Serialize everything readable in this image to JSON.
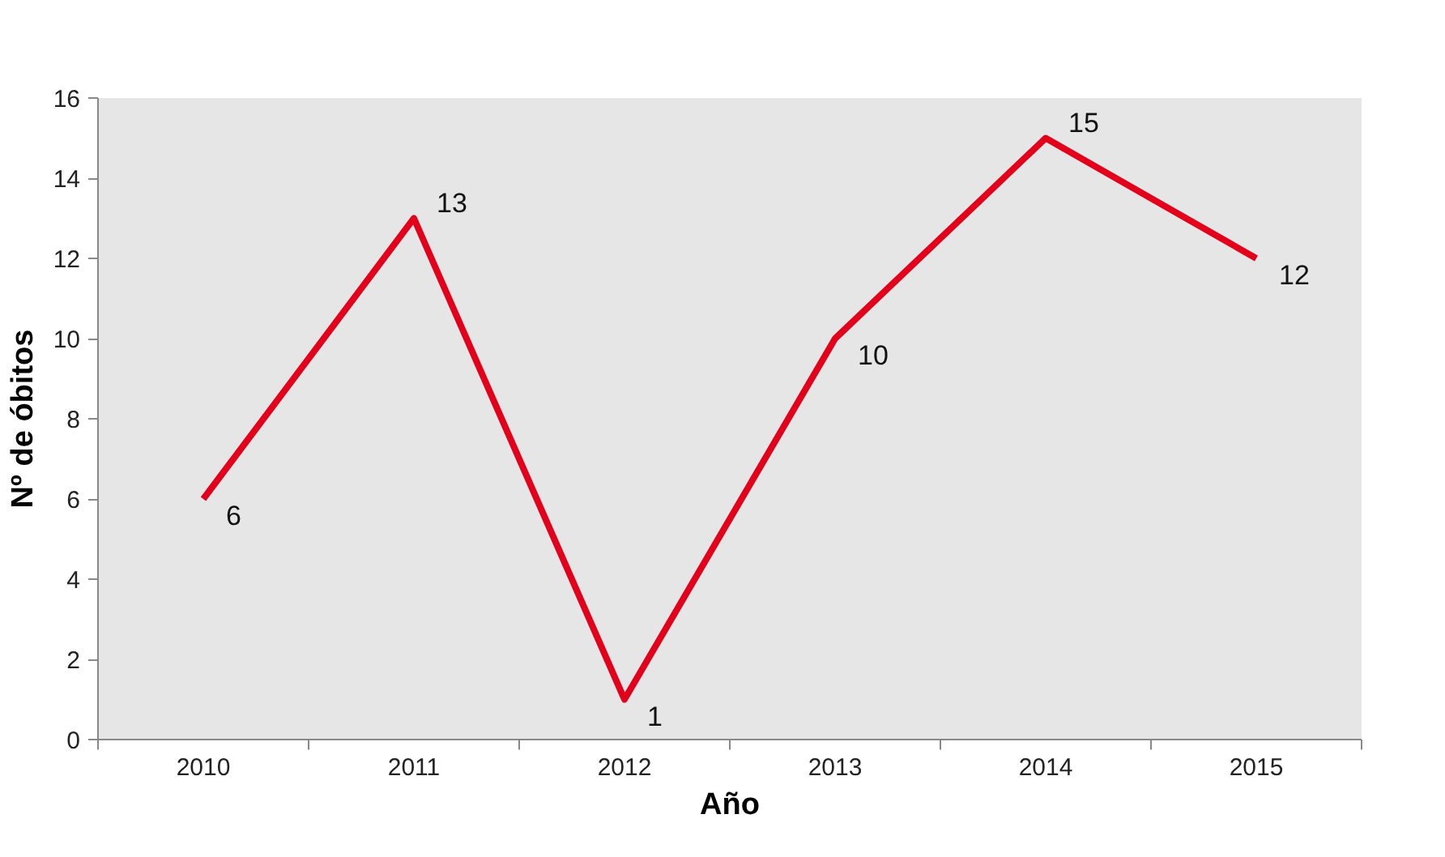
{
  "chart_data": {
    "type": "line",
    "xlabel": "Año",
    "ylabel": "Nº de óbitos",
    "categories": [
      "2010",
      "2011",
      "2012",
      "2013",
      "2014",
      "2015"
    ],
    "series": [
      {
        "color": "#e2001a",
        "values": [
          6,
          13,
          1,
          10,
          15,
          12
        ]
      }
    ],
    "ylim": [
      0,
      16
    ],
    "yticks": [
      0,
      2,
      4,
      6,
      8,
      10,
      12,
      14,
      16
    ],
    "data_labels": true,
    "marker": "none",
    "line_style": "solid"
  }
}
